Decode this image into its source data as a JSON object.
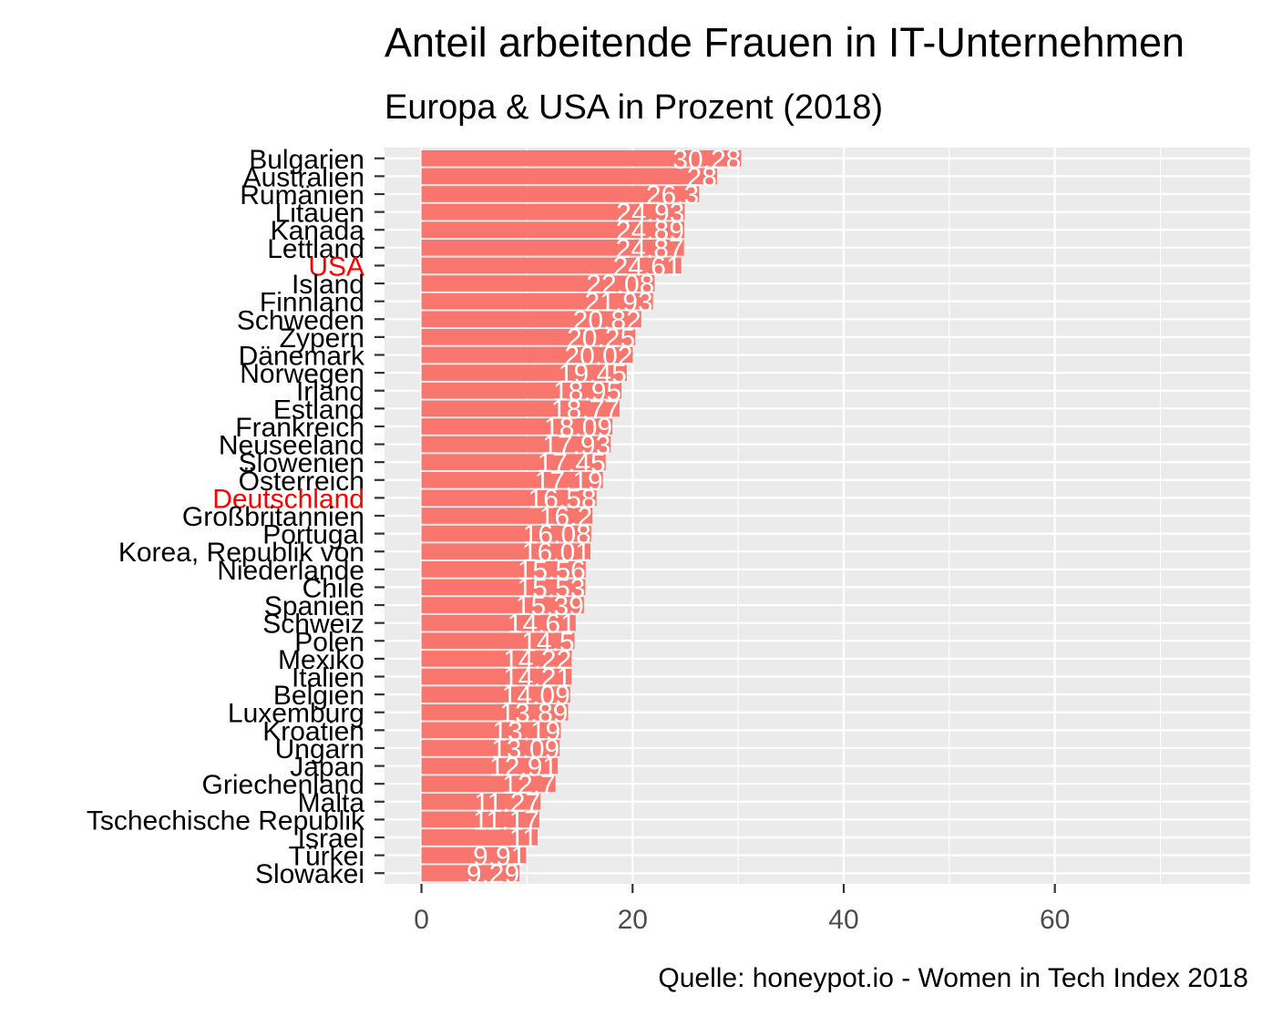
{
  "chart_data": {
    "type": "bar",
    "orientation": "horizontal",
    "title": "Anteil arbeitende Frauen in IT-Unternehmen",
    "subtitle": "Europa & USA in Prozent (2018)",
    "caption": "Quelle: honeypot.io - Women in Tech Index 2018",
    "xlim": [
      -3.5,
      78.5
    ],
    "x_ticks": [
      0,
      20,
      40,
      60
    ],
    "grid": true,
    "bar_color": "#F8766D",
    "panel_color": "#EBEBEB",
    "highlight_color": "#FF0000",
    "highlighted": [
      "USA",
      "Deutschland"
    ],
    "categories": [
      "Bulgarien",
      "Australien",
      "Rumänien",
      "Litauen",
      "Kanada",
      "Lettland",
      "USA",
      "Island",
      "Finnland",
      "Schweden",
      "Zypern",
      "Dänemark",
      "Norwegen",
      "Irland",
      "Estland",
      "Frankreich",
      "Neuseeland",
      "Slowenien",
      "Österreich",
      "Deutschland",
      "Großbritannien",
      "Portugal",
      "Korea, Republik von",
      "Niederlande",
      "Chile",
      "Spanien",
      "Schweiz",
      "Polen",
      "Mexiko",
      "Italien",
      "Belgien",
      "Luxemburg",
      "Kroatien",
      "Ungarn",
      "Japan",
      "Griechenland",
      "Malta",
      "Tschechische Republik",
      "Israel",
      "Türkei",
      "Slowakei"
    ],
    "values": [
      30.28,
      28,
      26.3,
      24.93,
      24.89,
      24.87,
      24.61,
      22.08,
      21.93,
      20.82,
      20.25,
      20.02,
      19.45,
      18.95,
      18.77,
      18.09,
      17.93,
      17.45,
      17.19,
      16.58,
      16.2,
      16.08,
      16.01,
      15.56,
      15.53,
      15.39,
      14.61,
      14.5,
      14.22,
      14.21,
      14.09,
      13.89,
      13.19,
      13.09,
      12.91,
      12.7,
      11.27,
      11.17,
      11,
      9.91,
      9.29
    ],
    "value_labels": [
      "30.28",
      "28",
      "26.3",
      "24.93",
      "24.89",
      "24.87",
      "24.61",
      "22.08",
      "21.93",
      "20.82",
      "20.25",
      "20.02",
      "19.45",
      "18.95",
      "18.77",
      "18.09",
      "17.93",
      "17.45",
      "17.19",
      "16.58",
      "16.2",
      "16.08",
      "16.01",
      "15.56",
      "15.53",
      "15.39",
      "14.61",
      "14.5",
      "14.22",
      "14.21",
      "14.09",
      "13.89",
      "13.19",
      "13.09",
      "12.91",
      "12.7",
      "11.27",
      "11.17",
      "11",
      "9.91",
      "9.29"
    ]
  }
}
